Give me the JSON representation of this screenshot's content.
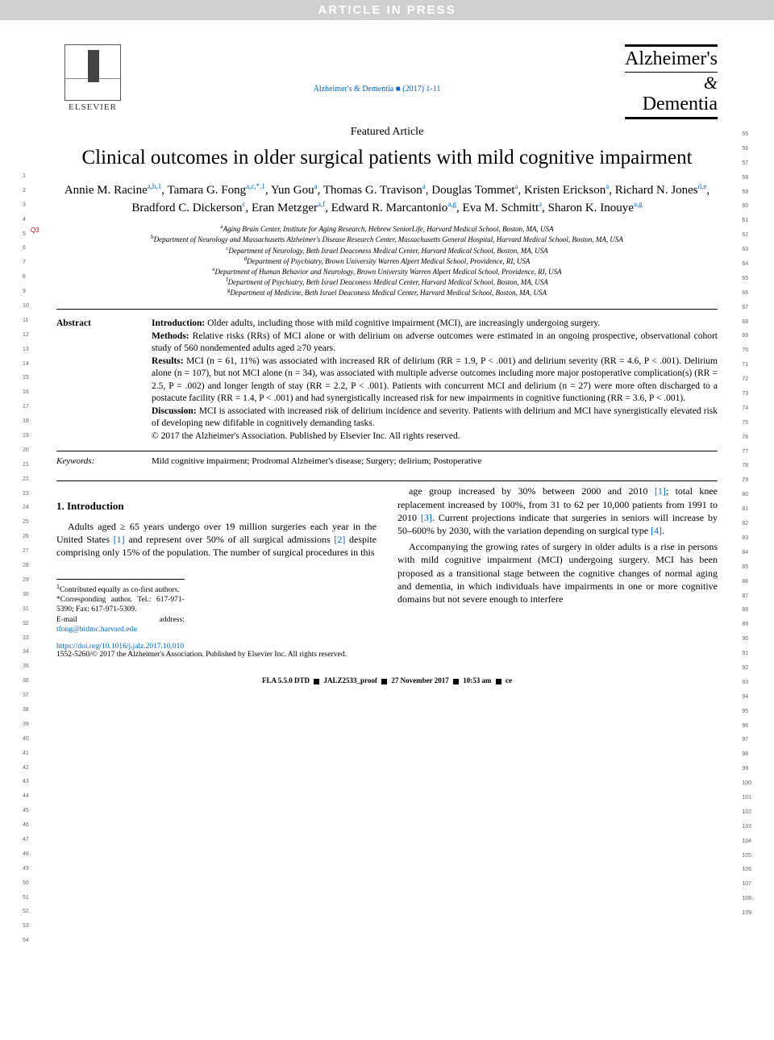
{
  "banner": "ARTICLE IN PRESS",
  "publisher": "ELSEVIER",
  "journal_ref": "Alzheimer's & Dementia ■ (2017) 1-11",
  "journal_logo": {
    "line1": "Alzheimer's",
    "amp": "&",
    "line2": "Dementia"
  },
  "article_type": "Featured Article",
  "title": "Clinical outcomes in older surgical patients with mild cognitive impairment",
  "q_marker": "Q3",
  "authors_html": "Annie M. Racine<sup>a,b,1</sup>, Tamara G. Fong<sup>a,c,*,1</sup>, Yun Gou<sup>a</sup>, Thomas G. Travison<sup>a</sup>, Douglas Tommet<sup>a</sup>, Kristen Erickson<sup>a</sup>, Richard N. Jones<sup>d,e</sup>, Bradford C. Dickerson<sup>c</sup>, Eran Metzger<sup>a,f</sup>, Edward R. Marcantonio<sup>a,g</sup>, Eva M. Schmitt<sup>a</sup>, Sharon K. Inouye<sup>a,g</sup>",
  "affiliations": [
    {
      "sup": "a",
      "text": "Aging Brain Center, Institute for Aging Research, Hebrew SeniorLife, Harvard Medical School, Boston, MA, USA"
    },
    {
      "sup": "b",
      "text": "Department of Neurology and Massachusetts Alzheimer's Disease Research Center, Massachusetts General Hospital, Harvard Medical School, Boston, MA, USA"
    },
    {
      "sup": "c",
      "text": "Department of Neurology, Beth Israel Deaconess Medical Center, Harvard Medical School, Boston, MA, USA"
    },
    {
      "sup": "d",
      "text": "Department of Psychiatry, Brown University Warren Alpert Medical School, Providence, RI, USA"
    },
    {
      "sup": "e",
      "text": "Department of Human Behavior and Neurology, Brown University Warren Alpert Medical School, Providence, RI, USA"
    },
    {
      "sup": "f",
      "text": "Department of Psychiatry, Beth Israel Deaconess Medical Center, Harvard Medical School, Boston, MA, USA"
    },
    {
      "sup": "g",
      "text": "Department of Medicine, Beth Israel Deaconess Medical Center, Harvard Medical School, Boston, MA, USA"
    }
  ],
  "abstract": {
    "label": "Abstract",
    "intro_head": "Introduction:",
    "intro": " Older adults, including those with mild cognitive impairment (MCI), are increasingly undergoing surgery.",
    "methods_head": "Methods:",
    "methods": " Relative risks (RRs) of MCI alone or with delirium on adverse outcomes were estimated in an ongoing prospective, observational cohort study of 560 nondemented adults aged ≥70 years.",
    "results_head": "Results:",
    "results": " MCI (n = 61, 11%) was associated with increased RR of delirium (RR = 1.9, P < .001) and delirium severity (RR = 4.6, P < .001). Delirium alone (n = 107), but not MCI alone (n = 34), was associated with multiple adverse outcomes including more major postoperative complication(s) (RR = 2.5, P = .002) and longer length of stay (RR = 2.2, P < .001). Patients with concurrent MCI and delirium (n = 27) were more often discharged to a postacute facility (RR = 1.4, P < .001) and had synergistically increased risk for new impairments in cognitive functioning (RR = 3.6, P < .001).",
    "discussion_head": "Discussion:",
    "discussion": " MCI is associated with increased risk of delirium incidence and severity. Patients with delirium and MCI have synergistically elevated risk of developing new dififable in cognitively demanding tasks.",
    "copyright": "© 2017 the Alzheimer's Association. Published by Elsevier Inc. All rights reserved."
  },
  "keywords": {
    "label": "Keywords:",
    "text": "Mild cognitive impairment; Prodromal Alzheimer's disease; Surgery; delirium; Postoperative"
  },
  "section1_heading": "1. Introduction",
  "body_col1": "Adults aged ≥ 65 years undergo over 19 million surgeries each year in the United States [1] and represent over 50% of all surgical admissions [2] despite comprising only 15% of the population. The number of surgical procedures in this",
  "body_col2_p1": "age group increased by 30% between 2000 and 2010 [1]; total knee replacement increased by 100%, from 31 to 62 per 10,000 patients from 1991 to 2010 [3]. Current projections indicate that surgeries in seniors will increase by 50–600% by 2030, with the variation depending on surgical type [4].",
  "body_col2_p2": "Accompanying the growing rates of surgery in older adults is a rise in persons with mild cognitive impairment (MCI) undergoing surgery. MCI has been proposed as a transitional stage between the cognitive changes of normal aging and dementia, in which individuals have impairments in one or more cognitive domains but not severe enough to interfere",
  "footnotes": {
    "f1": "Contributed equally as co-first authors.",
    "corr": "*Corresponding author. Tel.: 617-971-5390; Fax: 617-971-5309.",
    "email_label": "E-mail address: ",
    "email": "tfong@bidmc.harvard.edu"
  },
  "doi": "https://doi.org/10.1016/j.jalz.2017.10.010",
  "issn_copyright": "1552-5260/© 2017 the Alzheimer's Association. Published by Elsevier Inc. All rights reserved.",
  "footer": "FLA 5.5.0 DTD ■ JALZ2533_proof ■ 27 November 2017 ■ 10:53 am ■ ce",
  "line_numbers": {
    "left_start": 1,
    "left_end": 54,
    "right_start": 55,
    "right_end": 109
  },
  "colors": {
    "link": "#0066cc",
    "banner_bg": "#d0d0d0",
    "banner_fg": "#ffffff",
    "q_marker": "#cc0000"
  }
}
